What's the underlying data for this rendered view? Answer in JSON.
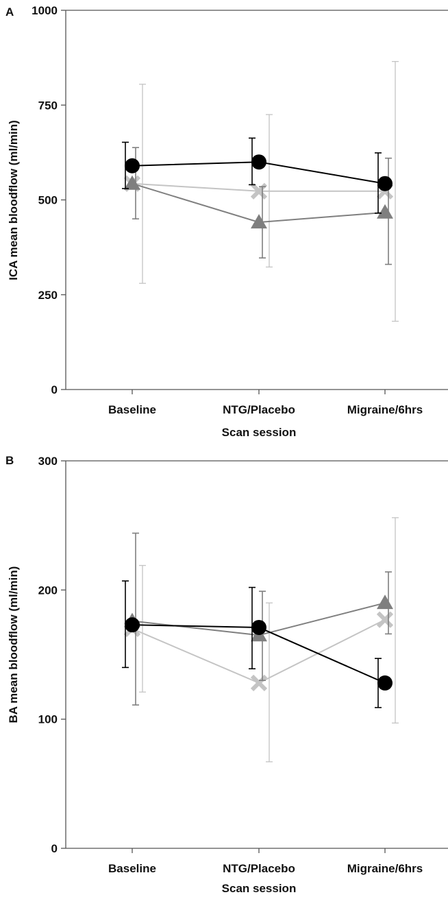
{
  "chart_data": [
    {
      "type": "line",
      "panel_label": "A",
      "categories": [
        "Baseline",
        "NTG/Placebo",
        "Migraine/6hrs"
      ],
      "xlabel": "Scan session",
      "ylabel": "ICA mean bloodflow (ml/min)",
      "ylim": [
        0,
        1000
      ],
      "yticks": [
        0,
        250,
        500,
        750,
        1000
      ],
      "grid": false,
      "series": [
        {
          "marker": "circle",
          "color": "#000000",
          "values": [
            590,
            600,
            543
          ],
          "err_low": [
            530,
            540,
            465
          ],
          "err_high": [
            652,
            663,
            624
          ]
        },
        {
          "marker": "triangle",
          "color": "#7f7f7f",
          "values": [
            543,
            441,
            467
          ],
          "err_low": [
            450,
            347,
            330
          ],
          "err_high": [
            638,
            535,
            610
          ]
        },
        {
          "marker": "cross",
          "color": "#c4c4c4",
          "values": [
            543,
            523,
            523
          ],
          "err_low": [
            280,
            323,
            180
          ],
          "err_high": [
            805,
            725,
            865
          ]
        }
      ]
    },
    {
      "type": "line",
      "panel_label": "B",
      "categories": [
        "Baseline",
        "NTG/Placebo",
        "Migraine/6hrs"
      ],
      "xlabel": "Scan session",
      "ylabel": "BA mean bloodflow (ml/min)",
      "ylim": [
        0,
        300
      ],
      "yticks": [
        0,
        100,
        200,
        300
      ],
      "grid": false,
      "series": [
        {
          "marker": "circle",
          "color": "#000000",
          "values": [
            173,
            171,
            128
          ],
          "err_low": [
            140,
            139,
            109
          ],
          "err_high": [
            207,
            202,
            147
          ]
        },
        {
          "marker": "triangle",
          "color": "#7f7f7f",
          "values": [
            176,
            165,
            190
          ],
          "err_low": [
            111,
            130,
            166
          ],
          "err_high": [
            244,
            199,
            214
          ]
        },
        {
          "marker": "cross",
          "color": "#c4c4c4",
          "values": [
            170,
            128,
            177
          ],
          "err_low": [
            121,
            67,
            97
          ],
          "err_high": [
            219,
            190,
            256
          ]
        }
      ]
    }
  ]
}
